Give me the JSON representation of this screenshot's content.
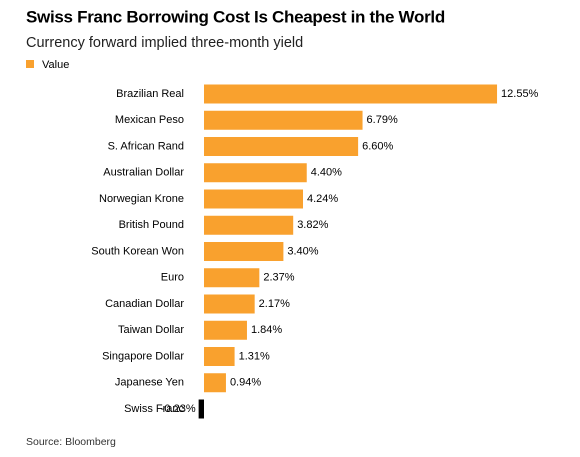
{
  "chart_data": {
    "type": "hbar",
    "title": "Swiss Franc Borrowing Cost Is Cheapest in the World",
    "subtitle": "Currency forward implied three-month yield",
    "categories": [
      "Brazilian Real",
      "Mexican Peso",
      "S. African Rand",
      "Australian Dollar",
      "Norwegian Krone",
      "British Pound",
      "South Korean Won",
      "Euro",
      "Canadian Dollar",
      "Taiwan Dollar",
      "Singapore Dollar",
      "Japanese Yen",
      "Swiss Franc"
    ],
    "series": [
      {
        "name": "Value",
        "color": "#f9a12e",
        "negative_color": "#000000",
        "values": [
          12.55,
          6.79,
          6.6,
          4.4,
          4.24,
          3.82,
          3.4,
          2.37,
          2.17,
          1.84,
          1.31,
          0.94,
          -0.23
        ],
        "value_labels": [
          "12.55%",
          "6.79%",
          "6.60%",
          "4.40%",
          "4.24%",
          "3.82%",
          "3.40%",
          "2.37%",
          "2.17%",
          "1.84%",
          "1.31%",
          "0.94%",
          "-0.23%"
        ]
      }
    ],
    "source": "Source: Bloomberg"
  }
}
